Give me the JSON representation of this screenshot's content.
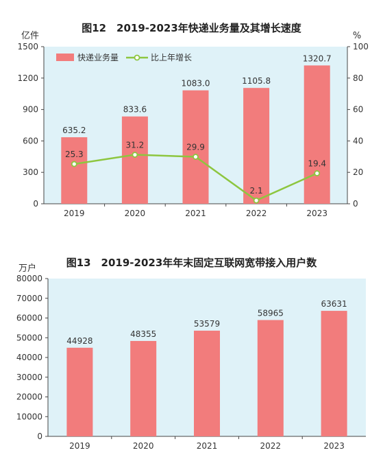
{
  "colors": {
    "bar": "#f27c7c",
    "line": "#8dc63f",
    "plot_bg": "#dff2f8",
    "axis": "#444444",
    "text": "#333333"
  },
  "chart_data": [
    {
      "type": "bar",
      "title": "图12　2019-2023年快递业务量及其增长速度",
      "ylabel_left": "亿件",
      "ylabel_right": "%",
      "categories": [
        "2019",
        "2020",
        "2021",
        "2022",
        "2023"
      ],
      "ylim_left": [
        0,
        1500
      ],
      "yticks_left": [
        0,
        300,
        600,
        900,
        1200,
        1500
      ],
      "ylim_right": [
        0,
        100
      ],
      "yticks_right": [
        0,
        20,
        40,
        60,
        80,
        100
      ],
      "legend_position": "top-left",
      "grid": false,
      "series": [
        {
          "name": "快递业务量",
          "type": "bar",
          "axis": "left",
          "values": [
            635.2,
            833.6,
            1083.0,
            1105.8,
            1320.7
          ],
          "labels": [
            "635.2",
            "833.6",
            "1083.0",
            "1105.8",
            "1320.7"
          ]
        },
        {
          "name": "比上年增长",
          "type": "line",
          "axis": "right",
          "values": [
            25.3,
            31.2,
            29.9,
            2.1,
            19.4
          ],
          "labels": [
            "25.3",
            "31.2",
            "29.9",
            "2.1",
            "19.4"
          ]
        }
      ]
    },
    {
      "type": "bar",
      "title": "图13　2019-2023年年末固定互联网宽带接入用户数",
      "ylabel": "万户",
      "categories": [
        "2019",
        "2020",
        "2021",
        "2022",
        "2023"
      ],
      "ylim": [
        0,
        80000
      ],
      "yticks": [
        0,
        10000,
        20000,
        30000,
        40000,
        50000,
        60000,
        70000,
        80000
      ],
      "grid": false,
      "values": [
        44928,
        48355,
        53579,
        58965,
        63631
      ],
      "labels": [
        "44928",
        "48355",
        "53579",
        "58965",
        "63631"
      ]
    }
  ]
}
